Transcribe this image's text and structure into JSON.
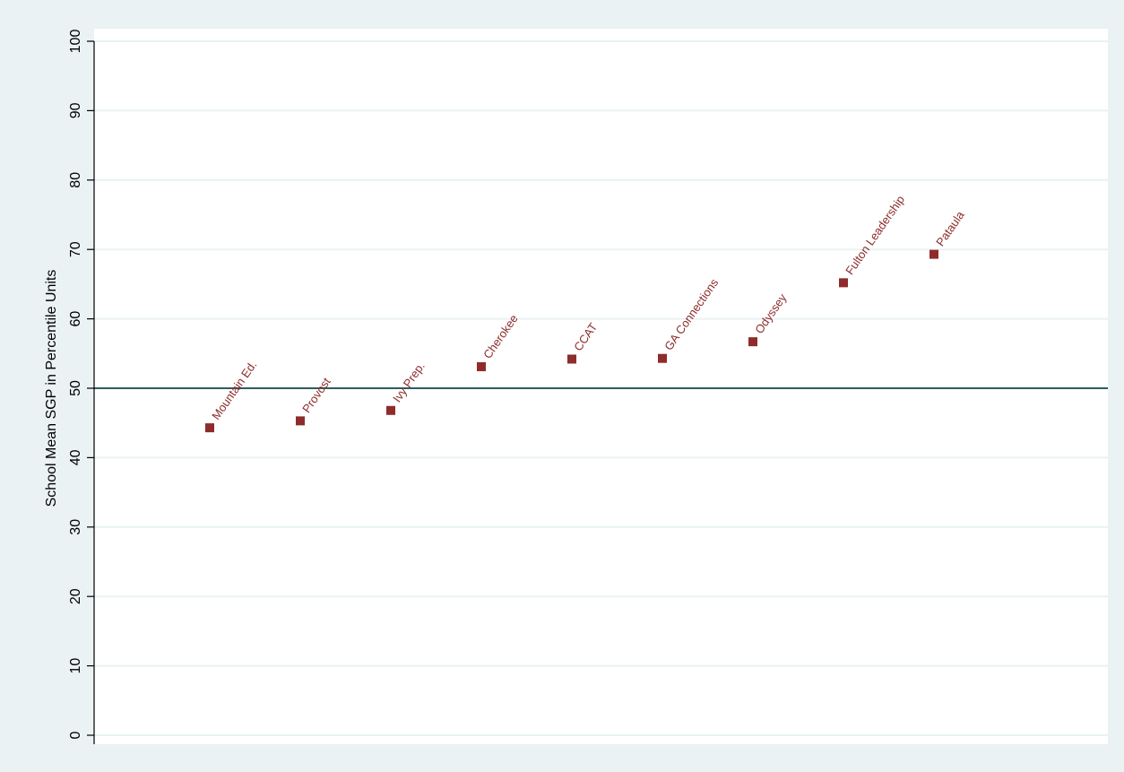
{
  "chart_data": {
    "type": "scatter",
    "title": "",
    "xlabel": "",
    "ylabel": "School Mean SGP in Percentile Units",
    "ylim": [
      0,
      100
    ],
    "yticks": [
      "0",
      "10",
      "20",
      "30",
      "40",
      "50",
      "60",
      "70",
      "80",
      "90",
      "100"
    ],
    "grid": true,
    "reference_line": {
      "y": 50
    },
    "series": [
      {
        "points": [
          {
            "label": "Mountain Ed.",
            "y": 44.3
          },
          {
            "label": "Provost",
            "y": 45.3
          },
          {
            "label": "Ivy Prep.",
            "y": 46.8
          },
          {
            "label": "Cherokee",
            "y": 53.1
          },
          {
            "label": "CCAT",
            "y": 54.2
          },
          {
            "label": "GA Connections",
            "y": 54.3
          },
          {
            "label": "Odyssey",
            "y": 56.7
          },
          {
            "label": "Fulton Leadership",
            "y": 65.2
          },
          {
            "label": "Pataula",
            "y": 69.3
          }
        ]
      }
    ],
    "colors": {
      "background": "#eaf2f3",
      "plot_area": "#ffffff",
      "gridline": "#eaf2f3",
      "marker": "#8e2c2c",
      "reference_line": "#2e5c5e"
    }
  }
}
